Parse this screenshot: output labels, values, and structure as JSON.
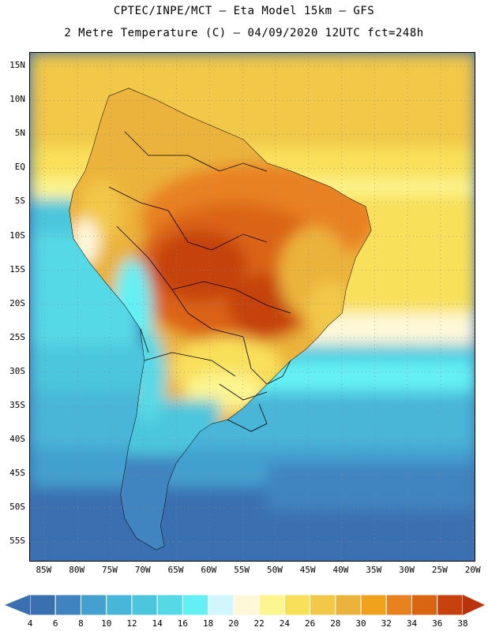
{
  "header": {
    "title_line1": "CPTEC/INPE/MCT –  Eta Model 15km – GFS",
    "title_line2": "2 Metre Temperature (C) – 04/09/2020 12UTC fct=248h"
  },
  "map": {
    "lat_labels": [
      "15N",
      "10N",
      "5N",
      "EQ",
      "5S",
      "10S",
      "15S",
      "20S",
      "25S",
      "30S",
      "35S",
      "40S",
      "45S",
      "50S",
      "55S"
    ],
    "lon_labels": [
      "85W",
      "80W",
      "75W",
      "70W",
      "65W",
      "60W",
      "55W",
      "50W",
      "45W",
      "40W",
      "35W",
      "30W",
      "25W",
      "20W"
    ],
    "lat_values": [
      15,
      10,
      5,
      0,
      -5,
      -10,
      -15,
      -20,
      -25,
      -30,
      -35,
      -40,
      -45,
      -50,
      -55
    ],
    "lon_values": [
      -85,
      -80,
      -75,
      -70,
      -65,
      -60,
      -55,
      -50,
      -45,
      -40,
      -35,
      -30,
      -25,
      -20
    ]
  },
  "colorbar": {
    "labels": [
      "4",
      "6",
      "8",
      "10",
      "12",
      "14",
      "16",
      "18",
      "20",
      "22",
      "24",
      "26",
      "28",
      "30",
      "32",
      "34",
      "36",
      "38"
    ],
    "colors": [
      "#3a6fb0",
      "#3f84c0",
      "#43a0cf",
      "#48b6d8",
      "#4cc6dc",
      "#56d9e6",
      "#63f0f4",
      "#d1f6fb",
      "#fef8d9",
      "#fdf590",
      "#f9e05a",
      "#f2c84a",
      "#ebb33b",
      "#f0a21c",
      "#e88120",
      "#db6413",
      "#c5420f"
    ],
    "left_arrow_color": "#3a6fb0",
    "right_arrow_color": "#b9330c"
  }
}
